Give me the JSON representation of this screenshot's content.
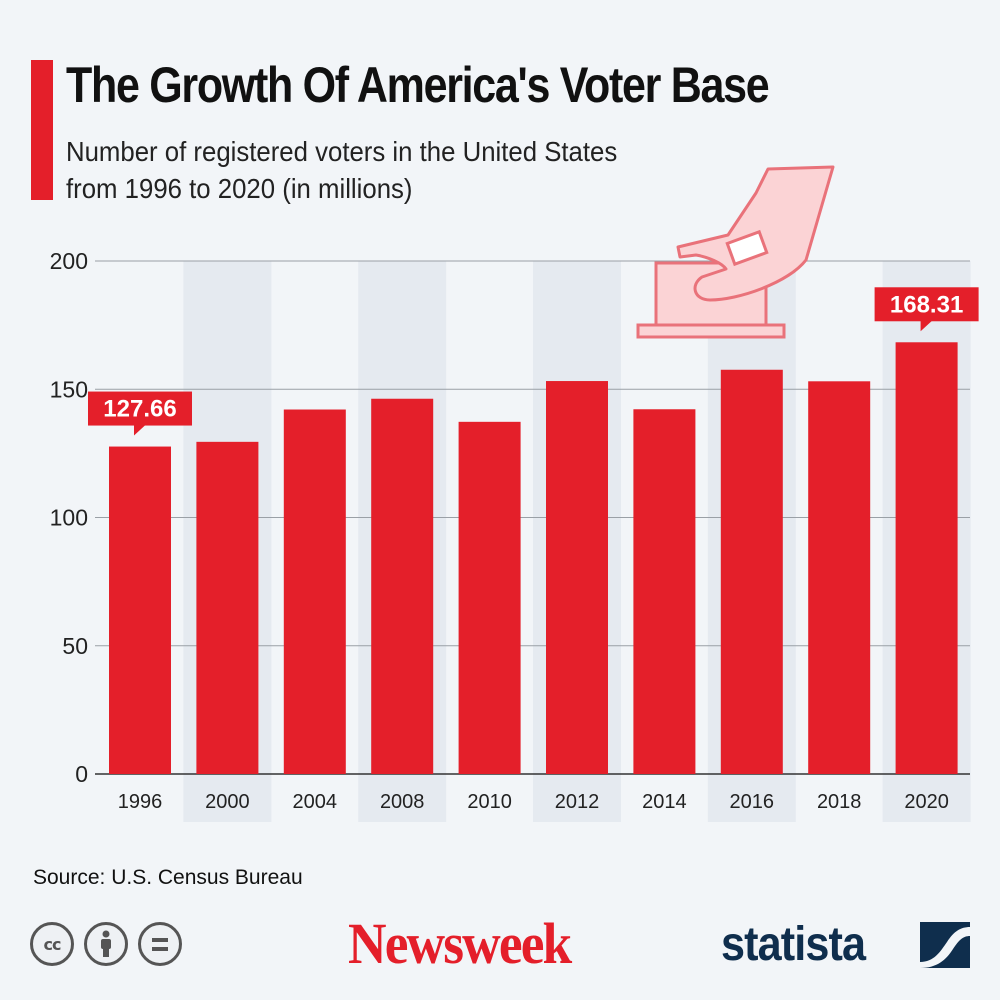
{
  "header": {
    "title": "The Growth Of America's Voter Base",
    "subtitle_line1": "Number of registered voters in the United States",
    "subtitle_line2": "from 1996 to 2020 (in millions)"
  },
  "colors": {
    "accent": "#e41f2a",
    "band": "#e5eaf0",
    "grid": "#9aa0a6",
    "background": "#f2f5f8",
    "statista_navy": "#0f2e4d"
  },
  "chart_data": {
    "type": "bar",
    "title": "The Growth Of America's Voter Base",
    "subtitle": "Number of registered voters in the United States from 1996 to 2020 (in millions)",
    "categories": [
      "1996",
      "2000",
      "2004",
      "2008",
      "2010",
      "2012",
      "2014",
      "2016",
      "2018",
      "2020"
    ],
    "values": [
      127.66,
      129.5,
      142.1,
      146.3,
      137.3,
      153.2,
      142.2,
      157.6,
      153.1,
      168.31
    ],
    "ylim": [
      0,
      200
    ],
    "yticks": [
      0,
      50,
      100,
      150,
      200
    ],
    "xlabel": "",
    "ylabel": "",
    "grid": true,
    "annotations": [
      {
        "category": "1996",
        "label": "127.66"
      },
      {
        "category": "2020",
        "label": "168.31"
      }
    ]
  },
  "footer": {
    "source": "Source: U.S. Census Bureau",
    "cc_label": "cc",
    "newsweek": "Newsweek",
    "statista": "statista",
    "icons": [
      "cc-icon",
      "attribution-icon",
      "no-derivatives-icon",
      "statista-logo-icon",
      "ballot-box-icon"
    ]
  }
}
